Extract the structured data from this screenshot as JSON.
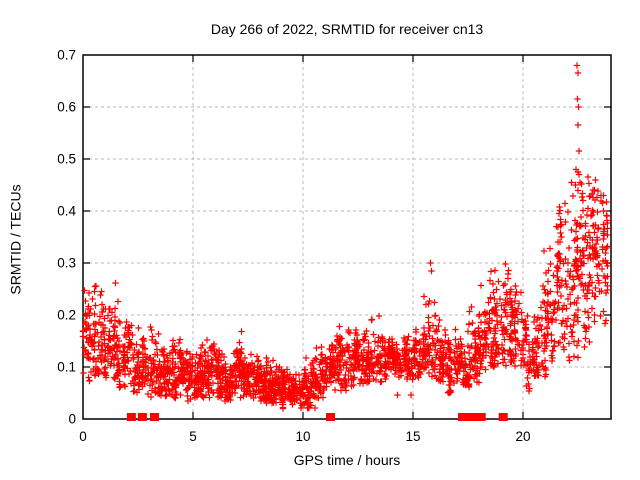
{
  "figure": {
    "title": "Day 266 of 2022, SRMTID for receiver cn13",
    "xlabel": "GPS time / hours",
    "ylabel": "SRMTID / TECUs"
  },
  "chart_data": {
    "type": "scatter",
    "title": "Day 266 of 2022, SRMTID for receiver cn13",
    "xlabel": "GPS time / hours",
    "ylabel": "SRMTID / TECUs",
    "xlim": [
      0,
      24
    ],
    "ylim": [
      0,
      0.7
    ],
    "xticks": [
      0,
      5,
      10,
      15,
      20
    ],
    "xtick_labels": [
      "0",
      "5",
      "10",
      "15",
      "20"
    ],
    "yticks": [
      0,
      0.1,
      0.2,
      0.3,
      0.4,
      0.5,
      0.6,
      0.7
    ],
    "ytick_labels": [
      "0",
      "0.1",
      "0.2",
      "0.3",
      "0.4",
      "0.5",
      "0.6",
      "0.7"
    ],
    "grid": "dashed",
    "legend": "none",
    "marker": "plus",
    "marker_color": "#ff0000",
    "grid_color": "#b9b9b9",
    "frame_color": "#000000",
    "seed": 20220266,
    "n_points_estimate": 2800,
    "bands_format": [
      "x_start_hour(width 0.5h)",
      "n_points",
      "y_min",
      "y_max",
      "y_center"
    ],
    "bands": [
      [
        0.0,
        60,
        0.07,
        0.3,
        0.15
      ],
      [
        0.5,
        55,
        0.08,
        0.26,
        0.14
      ],
      [
        1.0,
        60,
        0.07,
        0.24,
        0.13
      ],
      [
        1.5,
        60,
        0.06,
        0.28,
        0.13
      ],
      [
        2.0,
        55,
        0.05,
        0.18,
        0.11
      ],
      [
        2.5,
        55,
        0.04,
        0.16,
        0.1
      ],
      [
        3.0,
        55,
        0.04,
        0.18,
        0.09
      ],
      [
        3.5,
        65,
        0.04,
        0.15,
        0.085
      ],
      [
        4.0,
        65,
        0.04,
        0.17,
        0.085
      ],
      [
        4.5,
        65,
        0.03,
        0.13,
        0.08
      ],
      [
        5.0,
        65,
        0.04,
        0.15,
        0.085
      ],
      [
        5.5,
        65,
        0.04,
        0.16,
        0.09
      ],
      [
        6.0,
        65,
        0.04,
        0.14,
        0.08
      ],
      [
        6.5,
        65,
        0.03,
        0.13,
        0.075
      ],
      [
        7.0,
        65,
        0.04,
        0.18,
        0.085
      ],
      [
        7.5,
        65,
        0.04,
        0.14,
        0.08
      ],
      [
        8.0,
        65,
        0.03,
        0.14,
        0.075
      ],
      [
        8.5,
        65,
        0.03,
        0.12,
        0.07
      ],
      [
        9.0,
        65,
        0.02,
        0.11,
        0.065
      ],
      [
        9.5,
        60,
        0.02,
        0.09,
        0.05
      ],
      [
        10.0,
        60,
        0.02,
        0.12,
        0.06
      ],
      [
        10.5,
        55,
        0.04,
        0.16,
        0.09
      ],
      [
        11.0,
        55,
        0.05,
        0.15,
        0.095
      ],
      [
        11.5,
        55,
        0.05,
        0.18,
        0.1
      ],
      [
        12.0,
        55,
        0.06,
        0.21,
        0.11
      ],
      [
        12.5,
        55,
        0.06,
        0.2,
        0.11
      ],
      [
        13.0,
        55,
        0.07,
        0.22,
        0.12
      ],
      [
        13.5,
        55,
        0.07,
        0.18,
        0.115
      ],
      [
        14.0,
        55,
        0.08,
        0.16,
        0.115
      ],
      [
        14.5,
        55,
        0.07,
        0.16,
        0.115
      ],
      [
        15.0,
        55,
        0.08,
        0.18,
        0.12
      ],
      [
        15.5,
        55,
        0.08,
        0.25,
        0.13
      ],
      [
        16.0,
        55,
        0.07,
        0.2,
        0.125
      ],
      [
        16.5,
        55,
        0.05,
        0.18,
        0.11
      ],
      [
        17.0,
        55,
        0.06,
        0.17,
        0.11
      ],
      [
        17.5,
        55,
        0.07,
        0.25,
        0.13
      ],
      [
        18.0,
        55,
        0.09,
        0.28,
        0.16
      ],
      [
        18.5,
        55,
        0.1,
        0.31,
        0.17
      ],
      [
        19.0,
        55,
        0.1,
        0.32,
        0.18
      ],
      [
        19.5,
        50,
        0.1,
        0.28,
        0.17
      ],
      [
        20.0,
        50,
        0.05,
        0.2,
        0.13
      ],
      [
        20.5,
        50,
        0.08,
        0.25,
        0.15
      ],
      [
        21.0,
        55,
        0.1,
        0.38,
        0.2
      ],
      [
        21.5,
        60,
        0.12,
        0.43,
        0.24
      ],
      [
        22.0,
        60,
        0.1,
        0.46,
        0.28
      ],
      [
        22.5,
        65,
        0.12,
        0.48,
        0.3
      ],
      [
        23.0,
        60,
        0.14,
        0.45,
        0.28
      ],
      [
        23.5,
        40,
        0.15,
        0.43,
        0.27
      ]
    ],
    "outliers": [
      [
        15.8,
        0.3
      ],
      [
        15.85,
        0.285
      ],
      [
        22.45,
        0.68
      ],
      [
        22.5,
        0.665
      ],
      [
        22.48,
        0.615
      ],
      [
        22.52,
        0.6
      ],
      [
        22.5,
        0.565
      ],
      [
        22.55,
        0.515
      ],
      [
        22.42,
        0.48
      ],
      [
        22.5,
        0.475
      ],
      [
        22.55,
        0.47
      ],
      [
        22.6,
        0.455
      ],
      [
        22.38,
        0.45
      ],
      [
        23.3,
        0.46
      ],
      [
        23.25,
        0.44
      ],
      [
        14.3,
        0.046
      ],
      [
        14.9,
        0.046
      ]
    ],
    "zero_marker_hours": [
      2.2,
      2.7,
      3.25,
      11.25,
      17.25,
      17.6,
      17.9,
      18.1,
      19.1
    ]
  }
}
